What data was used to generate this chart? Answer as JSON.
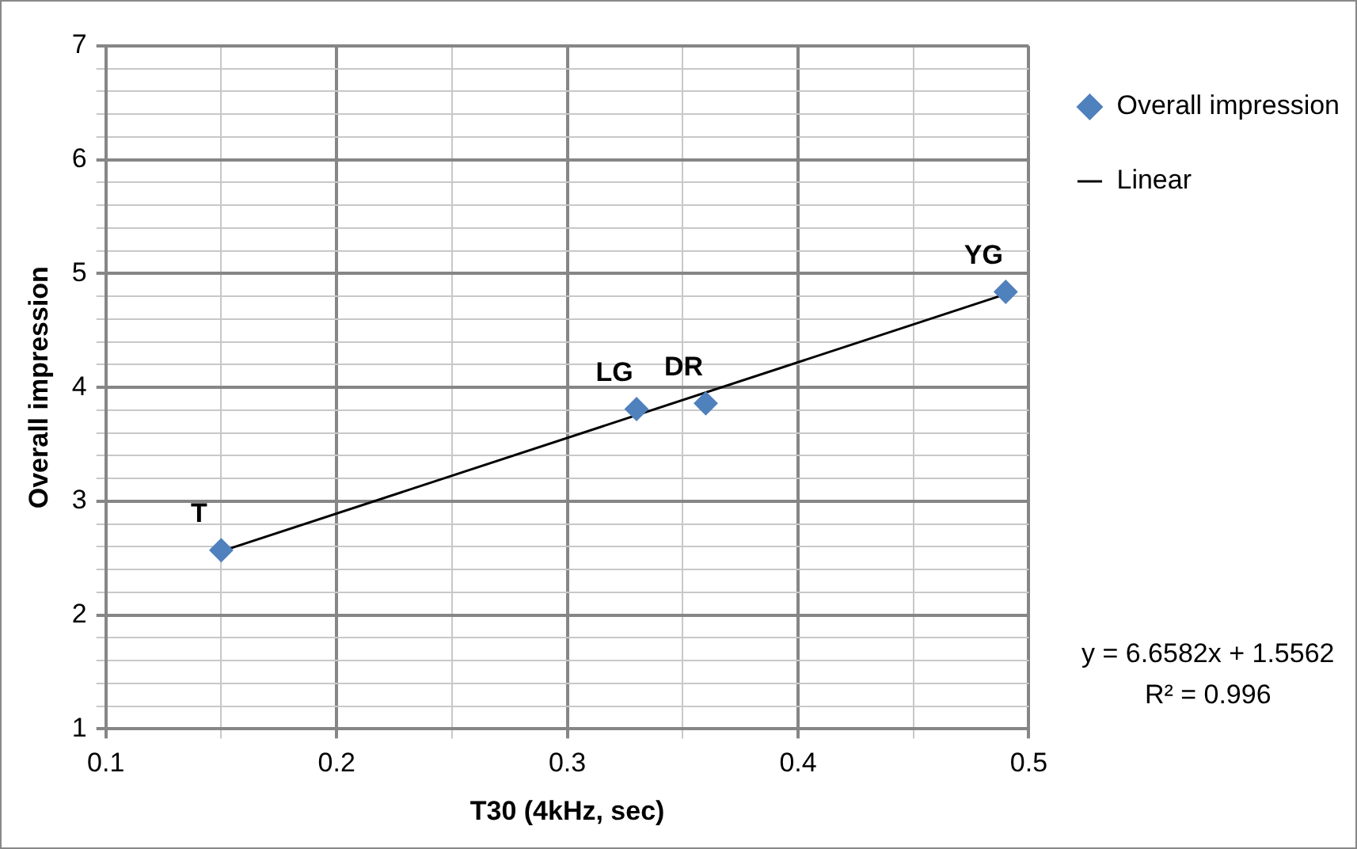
{
  "chart_data": {
    "type": "scatter",
    "xlabel": "T30 (4kHz, sec)",
    "ylabel": "Overall impression",
    "xlim": [
      0.1,
      0.5
    ],
    "ylim": [
      1,
      7
    ],
    "xticks": [
      0.1,
      {
        "value": 0.15,
        "label": null
      },
      0.2,
      {
        "value": 0.25,
        "label": null
      },
      0.3,
      {
        "value": 0.35,
        "label": null
      },
      0.4,
      {
        "value": 0.45,
        "label": null
      },
      0.5
    ],
    "yticks": [
      1,
      {
        "value": 1.2,
        "label": null
      },
      {
        "value": 1.4,
        "label": null
      },
      {
        "value": 1.6,
        "label": null
      },
      {
        "value": 1.8,
        "label": null
      },
      2,
      {
        "value": 2.2,
        "label": null
      },
      {
        "value": 2.4,
        "label": null
      },
      {
        "value": 2.6,
        "label": null
      },
      {
        "value": 2.8,
        "label": null
      },
      3,
      {
        "value": 3.2,
        "label": null
      },
      {
        "value": 3.4,
        "label": null
      },
      {
        "value": 3.6,
        "label": null
      },
      {
        "value": 3.8,
        "label": null
      },
      4,
      {
        "value": 4.2,
        "label": null
      },
      {
        "value": 4.4,
        "label": null
      },
      {
        "value": 4.6,
        "label": null
      },
      {
        "value": 4.8,
        "label": null
      },
      5,
      {
        "value": 5.2,
        "label": null
      },
      {
        "value": 5.4,
        "label": null
      },
      {
        "value": 5.6,
        "label": null
      },
      {
        "value": 5.8,
        "label": null
      },
      6,
      {
        "value": 6.2,
        "label": null
      },
      {
        "value": 6.4,
        "label": null
      },
      {
        "value": 6.6,
        "label": null
      },
      {
        "value": 6.8,
        "label": null
      },
      7
    ],
    "grid": true,
    "legend": "top right",
    "series": [
      {
        "name": "Overall impression",
        "color": "#4f81bd",
        "marker": "diamond",
        "x": [
          0.15,
          0.33,
          0.36,
          0.49
        ],
        "values": [
          2.57,
          3.81,
          3.86,
          4.84
        ]
      },
      {
        "name": "Linear",
        "type": "line",
        "color": "#000000",
        "marker": "none",
        "line_style": "solid",
        "x": [
          0.15,
          0.49
        ],
        "values": [
          2.56,
          4.82
        ]
      }
    ],
    "annotations": [
      {
        "text": "T",
        "x": 0.15,
        "y": 2.57
      },
      {
        "text": "LG",
        "x": 0.33,
        "y": 3.81
      },
      {
        "text": "DR",
        "x": 0.36,
        "y": 3.86
      },
      {
        "text": "YG",
        "x": 0.49,
        "y": 4.84
      },
      "y = 6.6582x + 1.5562",
      "R² = 0.996"
    ]
  }
}
